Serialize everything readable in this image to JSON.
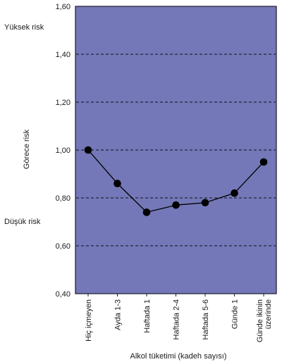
{
  "chart_data": {
    "type": "line",
    "title": "",
    "xlabel": "Alkol tüketimi (kadeh sayısı)",
    "ylabel": "Görece risk",
    "ylim": [
      0.4,
      1.6
    ],
    "yticks": [
      0.4,
      0.6,
      0.8,
      1.0,
      1.2,
      1.4,
      1.6
    ],
    "ytick_labels": [
      "0,40",
      "0,60",
      "0,80",
      "1,00",
      "1,20",
      "1,40",
      "1,60"
    ],
    "gridlines": [
      0.6,
      0.8,
      1.0,
      1.2,
      1.4
    ],
    "grid_style": "dashed",
    "categories": [
      [
        "Hiç içmeyen"
      ],
      [
        "Ayda 1-3"
      ],
      [
        "Haftada 1"
      ],
      [
        "Haftada 2-4"
      ],
      [
        "Haftada 5-6"
      ],
      [
        "Günde 1"
      ],
      [
        "Günde ikinin",
        "üzerinde"
      ]
    ],
    "series": [
      {
        "values": [
          1.0,
          0.86,
          0.74,
          0.77,
          0.78,
          0.82,
          0.95
        ]
      }
    ],
    "side_labels": {
      "high": "Yüksek risk",
      "low": "Düşük risk"
    }
  },
  "colors": {
    "plot_background": "#7478b8",
    "plot_border": "#1c1c2e",
    "grid": "#101018",
    "line": "#000000",
    "marker": "#000000",
    "text": "#1a1a1a"
  }
}
